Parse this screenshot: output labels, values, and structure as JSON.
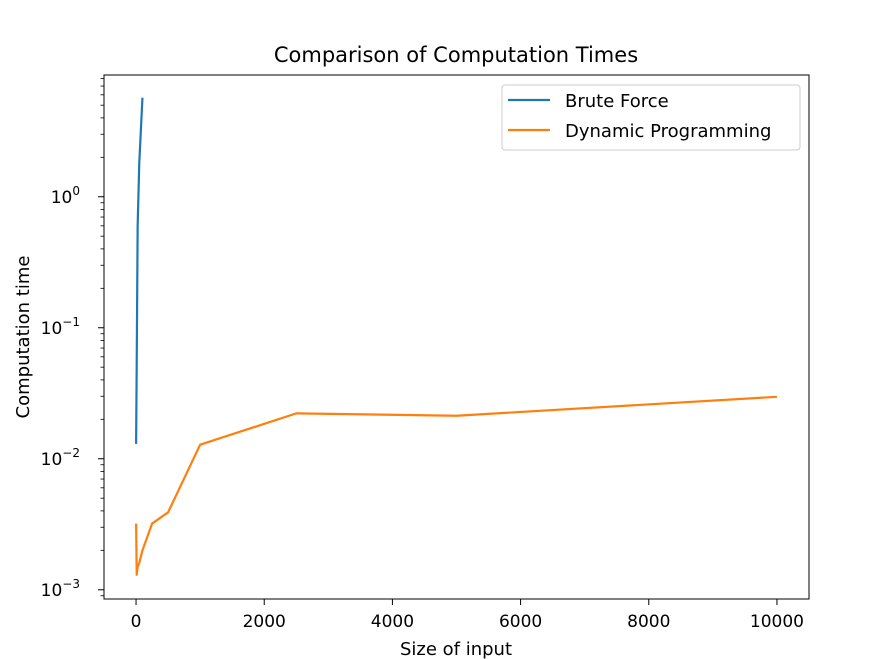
{
  "chart_data": {
    "type": "line",
    "title": "Comparison of Computation Times",
    "xlabel": "Size of input",
    "ylabel": "Computation time",
    "xlim": [
      -500,
      10500
    ],
    "ylim": [
      0.00085,
      8.5
    ],
    "yscale": "log",
    "grid": false,
    "legend_position": "top-right",
    "x_ticks": [
      0,
      2000,
      4000,
      6000,
      8000,
      10000
    ],
    "x_tick_labels": [
      "0",
      "2000",
      "4000",
      "6000",
      "8000",
      "10000"
    ],
    "y_ticks": [
      0.001,
      0.01,
      0.1,
      1
    ],
    "y_tick_labels": [
      {
        "base": "10",
        "exp": "−3"
      },
      {
        "base": "10",
        "exp": "−2"
      },
      {
        "base": "10",
        "exp": "−1"
      },
      {
        "base": "10",
        "exp": "0"
      }
    ],
    "series": [
      {
        "name": "Brute Force",
        "color": "#1f77b4",
        "x": [
          1,
          10,
          25,
          50,
          100
        ],
        "y": [
          0.013,
          0.05,
          0.6,
          1.8,
          5.7
        ]
      },
      {
        "name": "Dynamic Programming",
        "color": "#ff7f0e",
        "x": [
          1,
          10,
          25,
          50,
          100,
          250,
          500,
          1000,
          2500,
          5000,
          10000
        ],
        "y": [
          0.0032,
          0.0013,
          0.0015,
          0.0016,
          0.002,
          0.0032,
          0.0039,
          0.0128,
          0.0222,
          0.0213,
          0.0297
        ]
      }
    ]
  }
}
